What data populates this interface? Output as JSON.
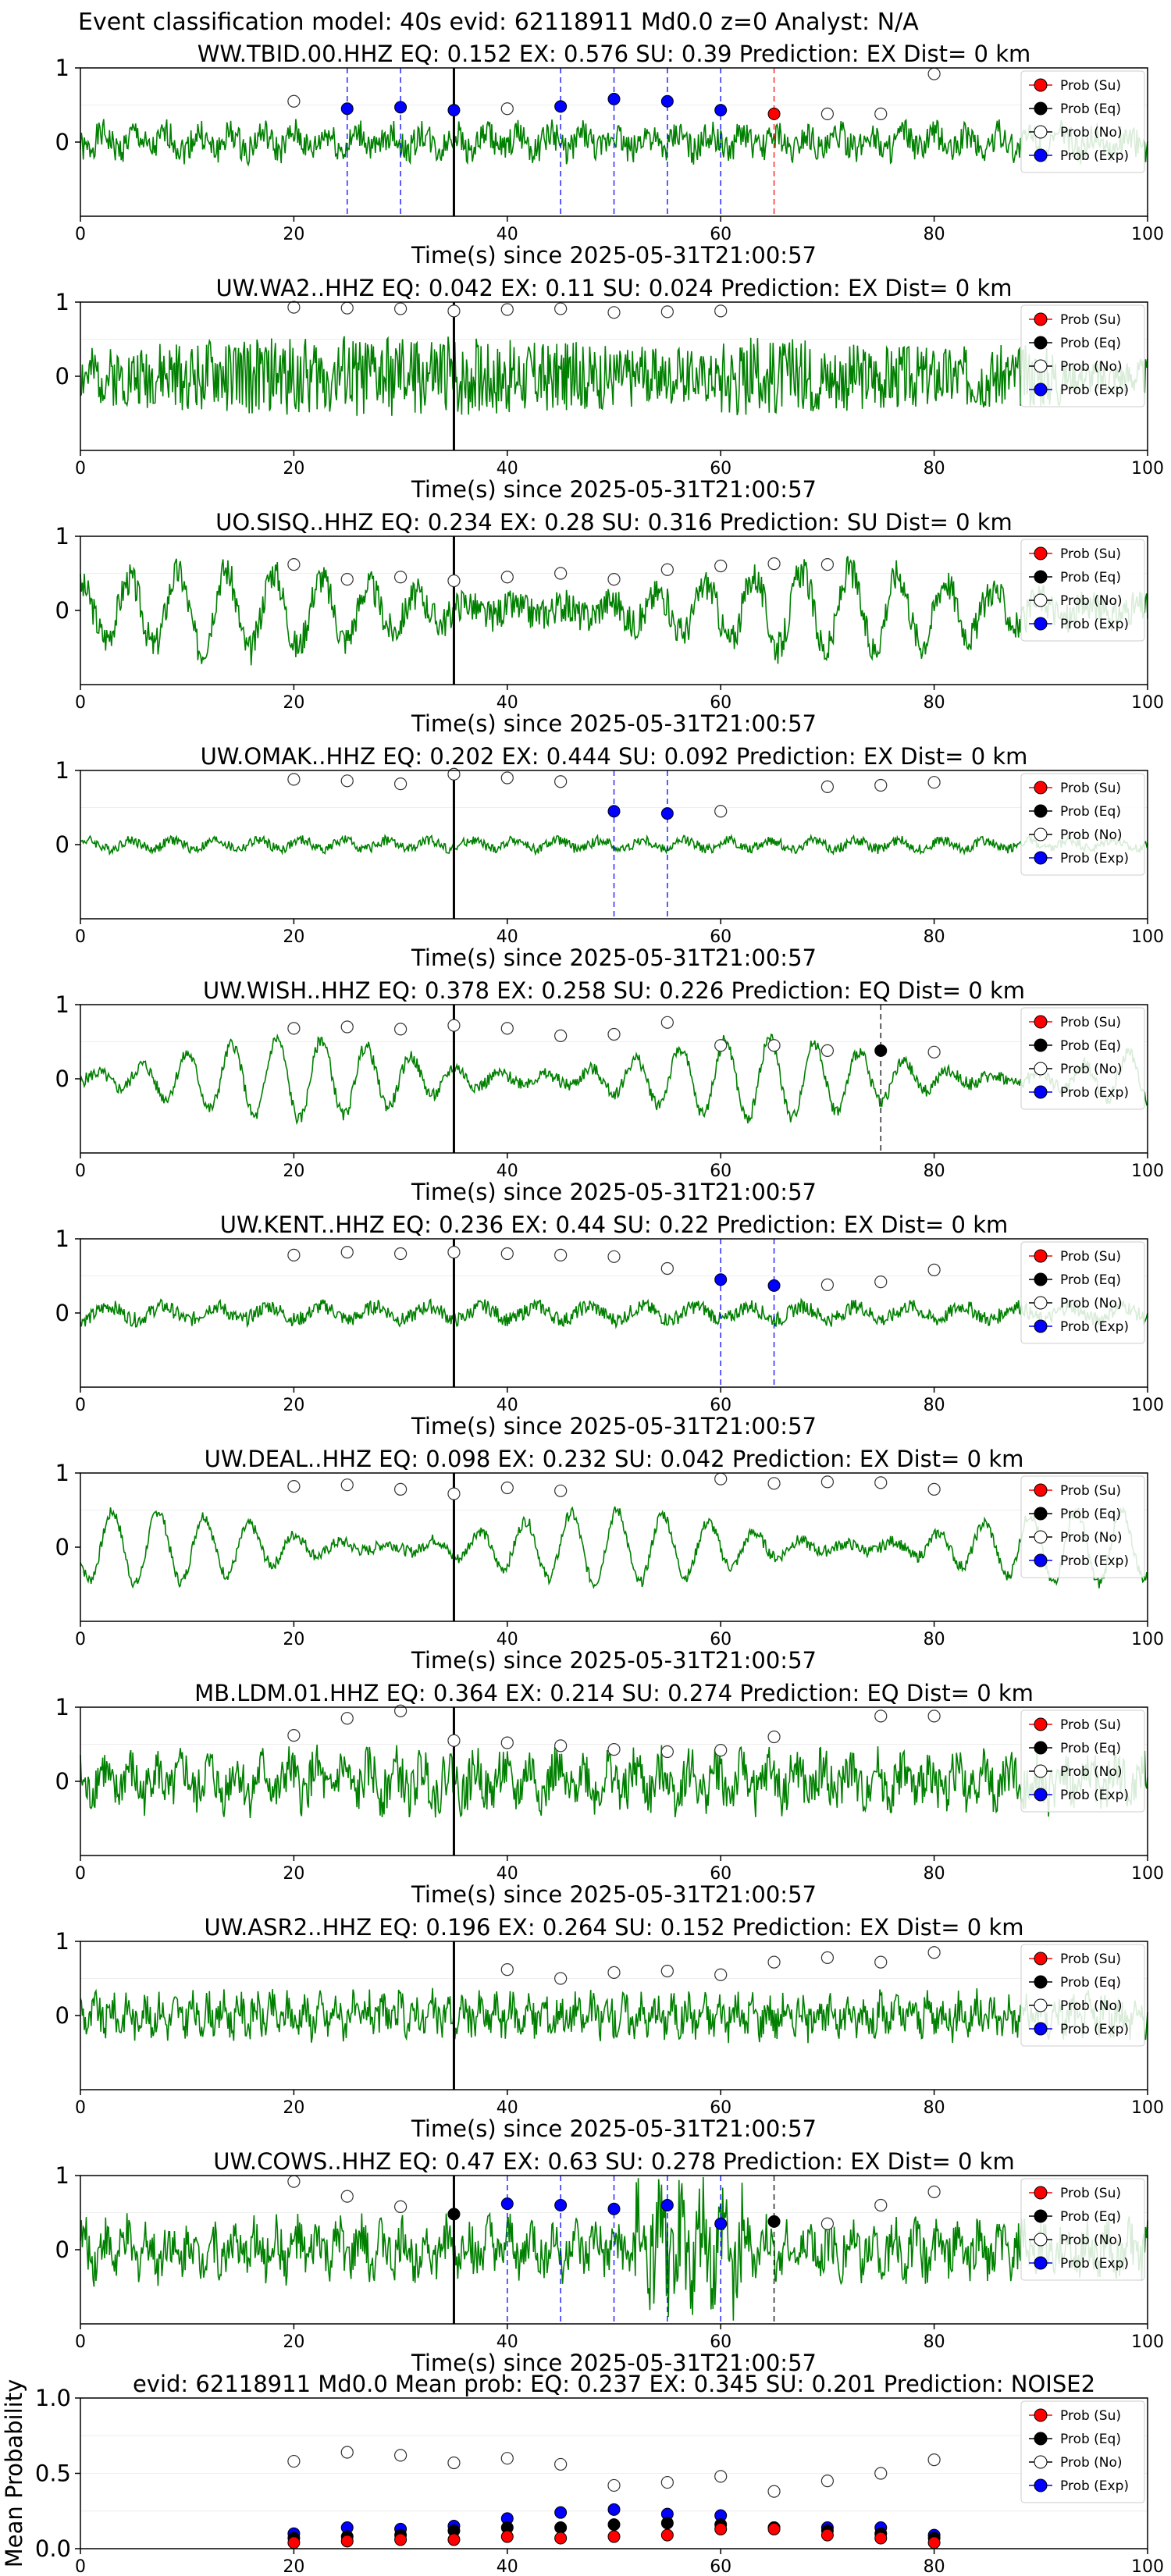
{
  "figure": {
    "suptitle": "Event classification model: 40s evid: 62118911 Md0.0 z=0 Analyst: N/A",
    "xlabel": "Time(s) since 2025-05-31T21:00:57",
    "legend_labels": [
      "Prob (Su)",
      "Prob (Eq)",
      "Prob (No)",
      "Prob (Exp)"
    ],
    "colors": {
      "trace": "#008000",
      "su": "#ff0000",
      "eq": "#000000",
      "no": "#ffffff",
      "exp": "#0000ff",
      "pick": "#000000"
    }
  },
  "chart_data": [
    {
      "type": "line",
      "station": "WW.TBID.00.HHZ",
      "eq": "0.152",
      "ex": "0.576",
      "su": "0.39",
      "prediction": "EX",
      "dist": "0",
      "title": "WW.TBID.00.HHZ   EQ: 0.152   EX: 0.576   SU: 0.39   Prediction: EX    Dist= 0 km",
      "xlim": [
        0,
        100
      ],
      "ylim": [
        -1,
        1
      ],
      "xticks": [
        0,
        20,
        40,
        60,
        80,
        100
      ],
      "yticks": [
        0,
        1
      ],
      "pick": 35,
      "waveform": {
        "style": "noise",
        "amp": 0.25,
        "period": 3,
        "seed": 1
      },
      "no": [
        [
          20,
          0.55
        ],
        [
          40,
          0.45
        ],
        [
          70,
          0.38
        ],
        [
          75,
          0.38
        ],
        [
          80,
          0.92
        ]
      ],
      "exp": [
        [
          25,
          0.45
        ],
        [
          30,
          0.47
        ],
        [
          35,
          0.43
        ],
        [
          45,
          0.48
        ],
        [
          50,
          0.58
        ],
        [
          55,
          0.55
        ],
        [
          60,
          0.43
        ]
      ],
      "eq_pts": [],
      "su_pts": [
        [
          65,
          0.38
        ]
      ],
      "vlines": [
        [
          25,
          "exp"
        ],
        [
          30,
          "exp"
        ],
        [
          45,
          "exp"
        ],
        [
          50,
          "exp"
        ],
        [
          55,
          "exp"
        ],
        [
          60,
          "exp"
        ],
        [
          65,
          "su"
        ]
      ]
    },
    {
      "type": "line",
      "station": "UW.WA2..HHZ",
      "eq": "0.042",
      "ex": "0.11",
      "su": "0.024",
      "prediction": "EX",
      "dist": "0",
      "title": "UW.WA2..HHZ   EQ: 0.042   EX: 0.11   SU: 0.024    Prediction: EX    Dist= 0 km",
      "xlim": [
        0,
        100
      ],
      "ylim": [
        -1,
        1
      ],
      "xticks": [
        0,
        20,
        40,
        60,
        80,
        100
      ],
      "yticks": [
        0,
        1
      ],
      "pick": 35,
      "waveform": {
        "style": "dense",
        "amp": 0.45,
        "period": 1,
        "seed": 2,
        "grow": true
      },
      "no": [
        [
          20,
          0.93
        ],
        [
          25,
          0.92
        ],
        [
          30,
          0.91
        ],
        [
          35,
          0.88
        ],
        [
          40,
          0.9
        ],
        [
          45,
          0.91
        ],
        [
          50,
          0.86
        ],
        [
          55,
          0.87
        ],
        [
          60,
          0.88
        ]
      ],
      "exp": [],
      "eq_pts": [],
      "su_pts": [],
      "vlines": []
    },
    {
      "type": "line",
      "station": "UO.SISQ..HHZ",
      "eq": "0.234",
      "ex": "0.28",
      "su": "0.316",
      "prediction": "SU",
      "dist": "0",
      "title": "UO.SISQ..HHZ   EQ: 0.234   EX: 0.28   SU: 0.316   Prediction: SU    Dist= 0 km",
      "xlim": [
        0,
        100
      ],
      "ylim": [
        -1,
        1
      ],
      "xticks": [
        0,
        20,
        40,
        60,
        80,
        100
      ],
      "yticks": [
        0,
        1
      ],
      "pick": 35,
      "waveform": {
        "style": "surf",
        "amp": 0.55,
        "period": 4.5,
        "seed": 3
      },
      "no": [
        [
          20,
          0.62
        ],
        [
          25,
          0.42
        ],
        [
          30,
          0.45
        ],
        [
          35,
          0.4
        ],
        [
          40,
          0.45
        ],
        [
          45,
          0.5
        ],
        [
          50,
          0.42
        ],
        [
          55,
          0.55
        ],
        [
          60,
          0.6
        ],
        [
          65,
          0.63
        ],
        [
          70,
          0.62
        ]
      ],
      "exp": [],
      "eq_pts": [],
      "su_pts": [],
      "vlines": []
    },
    {
      "type": "line",
      "station": "UW.OMAK..HHZ",
      "eq": "0.202",
      "ex": "0.444",
      "su": "0.092",
      "prediction": "EX",
      "dist": "0",
      "title": "UW.OMAK..HHZ   EQ: 0.202   EX: 0.444   SU: 0.092    Prediction: EX    Dist= 0 km",
      "xlim": [
        0,
        100
      ],
      "ylim": [
        -1,
        1
      ],
      "xticks": [
        0,
        20,
        40,
        60,
        80,
        100
      ],
      "yticks": [
        0,
        1
      ],
      "pick": 35,
      "waveform": {
        "style": "quiet",
        "amp": 0.12,
        "period": 4,
        "seed": 4
      },
      "no": [
        [
          20,
          0.88
        ],
        [
          25,
          0.86
        ],
        [
          30,
          0.82
        ],
        [
          35,
          0.95
        ],
        [
          40,
          0.9
        ],
        [
          45,
          0.85
        ],
        [
          60,
          0.45
        ],
        [
          70,
          0.78
        ],
        [
          75,
          0.8
        ],
        [
          80,
          0.84
        ]
      ],
      "exp": [
        [
          50,
          0.45
        ],
        [
          55,
          0.42
        ]
      ],
      "eq_pts": [],
      "su_pts": [],
      "vlines": [
        [
          50,
          "exp"
        ],
        [
          55,
          "exp"
        ]
      ]
    },
    {
      "type": "line",
      "station": "UW.WISH..HHZ",
      "eq": "0.378",
      "ex": "0.258",
      "su": "0.226",
      "prediction": "EQ",
      "dist": "0",
      "title": "UW.WISH..HHZ   EQ: 0.378   EX: 0.258   SU: 0.226    Prediction: EQ     Dist= 0 km",
      "xlim": [
        0,
        100
      ],
      "ylim": [
        -1,
        1
      ],
      "xticks": [
        0,
        20,
        40,
        60,
        80,
        100
      ],
      "yticks": [
        0,
        1
      ],
      "pick": 35,
      "waveform": {
        "style": "osc",
        "amp": 0.5,
        "period": 4.2,
        "seed": 5
      },
      "no": [
        [
          20,
          0.68
        ],
        [
          25,
          0.7
        ],
        [
          30,
          0.67
        ],
        [
          35,
          0.72
        ],
        [
          40,
          0.68
        ],
        [
          45,
          0.58
        ],
        [
          50,
          0.6
        ],
        [
          55,
          0.76
        ],
        [
          60,
          0.45
        ],
        [
          65,
          0.45
        ],
        [
          70,
          0.38
        ],
        [
          80,
          0.36
        ]
      ],
      "exp": [],
      "eq_pts": [
        [
          75,
          0.38
        ]
      ],
      "su_pts": [],
      "vlines": [
        [
          75,
          "eq"
        ]
      ]
    },
    {
      "type": "line",
      "station": "UW.KENT..HHZ",
      "eq": "0.236",
      "ex": "0.44",
      "su": "0.22",
      "prediction": "EX",
      "dist": "0",
      "title": "UW.KENT..HHZ   EQ: 0.236   EX: 0.44   SU: 0.22    Prediction: EX    Dist= 0 km",
      "xlim": [
        0,
        100
      ],
      "ylim": [
        -1,
        1
      ],
      "xticks": [
        0,
        20,
        40,
        60,
        80,
        100
      ],
      "yticks": [
        0,
        1
      ],
      "pick": 35,
      "waveform": {
        "style": "quiet",
        "amp": 0.18,
        "period": 5,
        "seed": 6
      },
      "no": [
        [
          20,
          0.78
        ],
        [
          25,
          0.82
        ],
        [
          30,
          0.8
        ],
        [
          35,
          0.82
        ],
        [
          40,
          0.8
        ],
        [
          45,
          0.78
        ],
        [
          50,
          0.76
        ],
        [
          55,
          0.6
        ],
        [
          70,
          0.38
        ],
        [
          75,
          0.42
        ],
        [
          80,
          0.58
        ]
      ],
      "exp": [
        [
          60,
          0.45
        ],
        [
          65,
          0.37
        ]
      ],
      "eq_pts": [],
      "su_pts": [],
      "vlines": [
        [
          60,
          "exp"
        ],
        [
          65,
          "exp"
        ]
      ]
    },
    {
      "type": "line",
      "station": "UW.DEAL..HHZ",
      "eq": "0.098",
      "ex": "0.232",
      "su": "0.042",
      "prediction": "EX",
      "dist": "0",
      "title": "UW.DEAL..HHZ   EQ: 0.098   EX: 0.232   SU: 0.042    Prediction: EX    Dist= 0 km",
      "xlim": [
        0,
        100
      ],
      "ylim": [
        -1,
        1
      ],
      "xticks": [
        0,
        20,
        40,
        60,
        80,
        100
      ],
      "yticks": [
        0,
        1
      ],
      "pick": 35,
      "waveform": {
        "style": "osc",
        "amp": 0.45,
        "period": 4.3,
        "seed": 7
      },
      "no": [
        [
          20,
          0.82
        ],
        [
          25,
          0.84
        ],
        [
          30,
          0.78
        ],
        [
          35,
          0.72
        ],
        [
          40,
          0.8
        ],
        [
          45,
          0.76
        ],
        [
          60,
          0.92
        ],
        [
          65,
          0.86
        ],
        [
          70,
          0.88
        ],
        [
          75,
          0.87
        ],
        [
          80,
          0.78
        ]
      ],
      "exp": [],
      "eq_pts": [],
      "su_pts": [],
      "vlines": []
    },
    {
      "type": "line",
      "station": "MB.LDM.01.HHZ",
      "eq": "0.364",
      "ex": "0.214",
      "su": "0.274",
      "prediction": "EQ",
      "dist": "0",
      "title": "MB.LDM.01.HHZ   EQ: 0.364   EX: 0.214   SU: 0.274    Prediction: EQ     Dist= 0 km",
      "xlim": [
        0,
        100
      ],
      "ylim": [
        -1,
        1
      ],
      "xticks": [
        0,
        20,
        40,
        60,
        80,
        100
      ],
      "yticks": [
        0,
        1
      ],
      "pick": 35,
      "waveform": {
        "style": "noise",
        "amp": 0.4,
        "period": 2.5,
        "seed": 8
      },
      "no": [
        [
          20,
          0.62
        ],
        [
          25,
          0.85
        ],
        [
          30,
          0.95
        ],
        [
          35,
          0.55
        ],
        [
          40,
          0.52
        ],
        [
          45,
          0.48
        ],
        [
          50,
          0.43
        ],
        [
          55,
          0.4
        ],
        [
          60,
          0.42
        ],
        [
          65,
          0.6
        ],
        [
          75,
          0.88
        ],
        [
          80,
          0.88
        ]
      ],
      "exp": [],
      "eq_pts": [],
      "su_pts": [],
      "vlines": []
    },
    {
      "type": "line",
      "station": "UW.ASR2..HHZ",
      "eq": "0.196",
      "ex": "0.264",
      "su": "0.152",
      "prediction": "EX",
      "dist": "0",
      "title": "UW.ASR2..HHZ   EQ: 0.196   EX: 0.264   SU: 0.152    Prediction: EX    Dist= 0 km",
      "xlim": [
        0,
        100
      ],
      "ylim": [
        -1,
        1
      ],
      "xticks": [
        0,
        20,
        40,
        60,
        80,
        100
      ],
      "yticks": [
        0,
        1
      ],
      "pick": 35,
      "waveform": {
        "style": "noise",
        "amp": 0.3,
        "period": 1.5,
        "seed": 9
      },
      "no": [
        [
          40,
          0.62
        ],
        [
          45,
          0.5
        ],
        [
          50,
          0.58
        ],
        [
          55,
          0.6
        ],
        [
          60,
          0.55
        ],
        [
          65,
          0.72
        ],
        [
          70,
          0.78
        ],
        [
          75,
          0.72
        ],
        [
          80,
          0.85
        ]
      ],
      "exp": [],
      "eq_pts": [],
      "su_pts": [],
      "vlines": []
    },
    {
      "type": "line",
      "station": "UW.COWS..HHZ",
      "eq": "0.47",
      "ex": "0.63",
      "su": "0.278",
      "prediction": "EX",
      "dist": "0",
      "title": "UW.COWS..HHZ   EQ: 0.47   EX: 0.63   SU: 0.278    Prediction: EX    Dist= 0 km",
      "xlim": [
        0,
        100
      ],
      "ylim": [
        -1,
        1
      ],
      "xticks": [
        0,
        20,
        40,
        60,
        80,
        100
      ],
      "yticks": [
        0,
        1
      ],
      "pick": 35,
      "waveform": {
        "style": "noise",
        "amp": 0.4,
        "period": 2,
        "seed": 10,
        "burst": [
          52,
          62
        ]
      },
      "no": [
        [
          20,
          0.92
        ],
        [
          25,
          0.72
        ],
        [
          30,
          0.58
        ],
        [
          70,
          0.35
        ],
        [
          75,
          0.6
        ],
        [
          80,
          0.78
        ]
      ],
      "exp": [
        [
          40,
          0.62
        ],
        [
          45,
          0.6
        ],
        [
          50,
          0.55
        ],
        [
          55,
          0.6
        ],
        [
          60,
          0.35
        ]
      ],
      "eq_pts": [
        [
          35,
          0.48
        ],
        [
          65,
          0.38
        ]
      ],
      "su_pts": [],
      "vlines": [
        [
          40,
          "exp"
        ],
        [
          45,
          "exp"
        ],
        [
          50,
          "exp"
        ],
        [
          55,
          "exp"
        ],
        [
          60,
          "exp"
        ],
        [
          65,
          "eq"
        ]
      ]
    },
    {
      "type": "scatter",
      "evid": "62118911",
      "magnitude": "Md0.0",
      "eq": "0.237",
      "ex": "0.345",
      "su": [
        0.04,
        0.05,
        0.06,
        0.06,
        0.08,
        0.07,
        0.08,
        0.09,
        0.13,
        0.13,
        0.09,
        0.07,
        0.04
      ],
      "prediction": "NOISE2",
      "title": "evid: 62118911  Md0.0   Mean prob:   EQ: 0.237  EX: 0.345  SU: 0.201   Prediction: NOISE2",
      "ylabel": "Mean Probability",
      "xlim": [
        0,
        100
      ],
      "ylim": [
        0,
        1
      ],
      "xticks": [
        0,
        20,
        40,
        60,
        80,
        100
      ],
      "yticks": [
        0.0,
        0.5,
        1.0
      ],
      "yticklabels": [
        "0.0",
        "0.5",
        "1.0"
      ],
      "x": [
        20,
        25,
        30,
        35,
        40,
        45,
        50,
        55,
        60,
        65,
        70,
        75,
        80
      ],
      "no": [
        0.58,
        0.64,
        0.62,
        0.57,
        0.6,
        0.56,
        0.42,
        0.44,
        0.48,
        0.38,
        0.45,
        0.5,
        0.59
      ],
      "exp": [
        0.1,
        0.14,
        0.13,
        0.15,
        0.2,
        0.24,
        0.26,
        0.23,
        0.22,
        0.14,
        0.14,
        0.14,
        0.09
      ],
      "eq_pts": [
        0.07,
        0.08,
        0.09,
        0.12,
        0.14,
        0.14,
        0.16,
        0.17,
        0.16,
        0.14,
        0.12,
        0.1,
        0.07
      ]
    }
  ]
}
